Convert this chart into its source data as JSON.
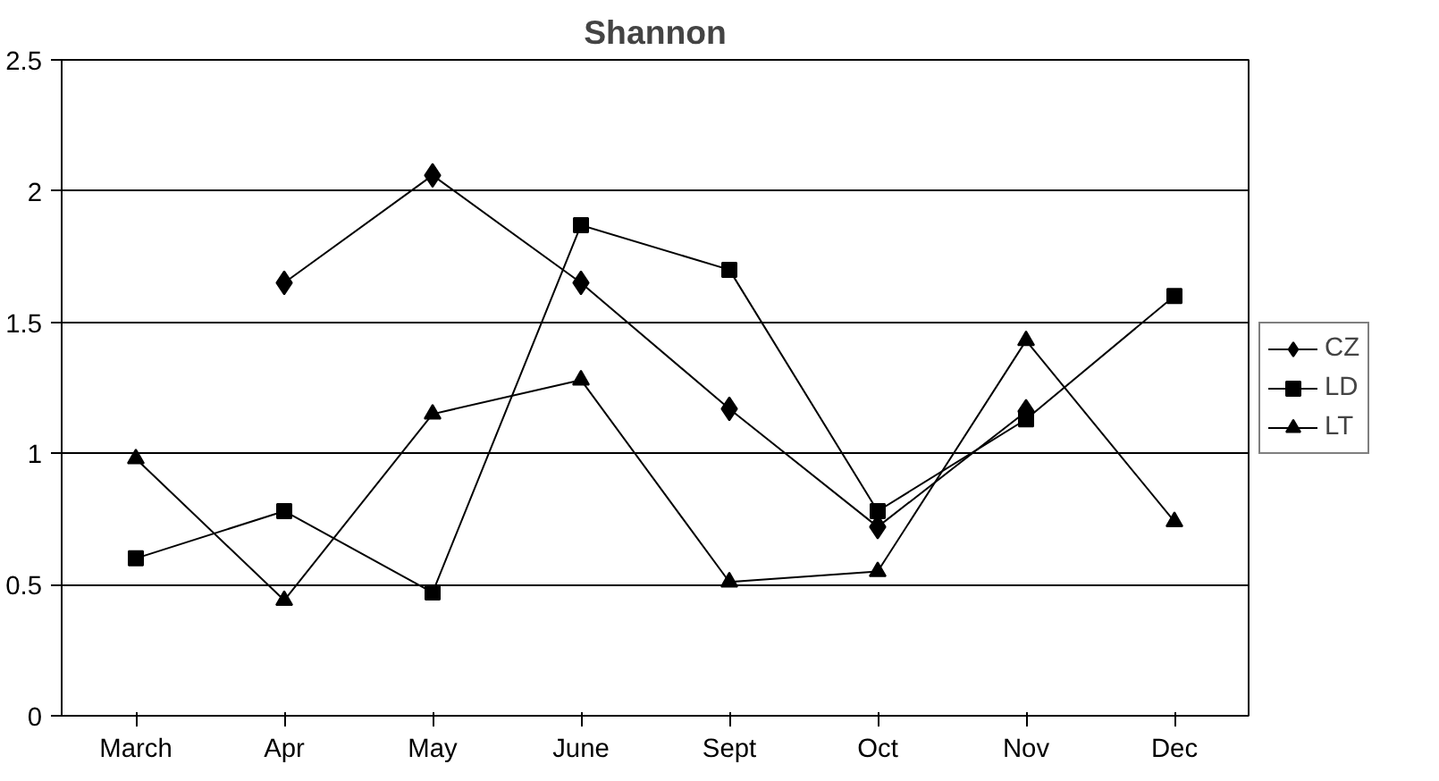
{
  "chart_data": {
    "type": "line",
    "title": "Shannon",
    "categories": [
      "March",
      "Apr",
      "May",
      "June",
      "Sept",
      "Oct",
      "Nov",
      "Dec"
    ],
    "series": [
      {
        "name": "CZ",
        "color": "#000000",
        "marker": "diamond",
        "values": [
          null,
          1.65,
          2.06,
          1.65,
          1.17,
          0.72,
          1.16,
          null
        ]
      },
      {
        "name": "LD",
        "color": "#000000",
        "marker": "square",
        "values": [
          0.6,
          0.78,
          0.47,
          1.87,
          1.7,
          0.78,
          1.13,
          1.6
        ]
      },
      {
        "name": "LT",
        "color": "#000000",
        "marker": "triangle",
        "values": [
          0.98,
          0.44,
          1.15,
          1.28,
          0.51,
          0.55,
          1.43,
          0.74
        ]
      }
    ],
    "ylim": [
      0,
      2.5
    ],
    "yticks": [
      0,
      0.5,
      1,
      1.5,
      2,
      2.5
    ],
    "grid": "y",
    "legend": "right",
    "line_style": "solid"
  }
}
